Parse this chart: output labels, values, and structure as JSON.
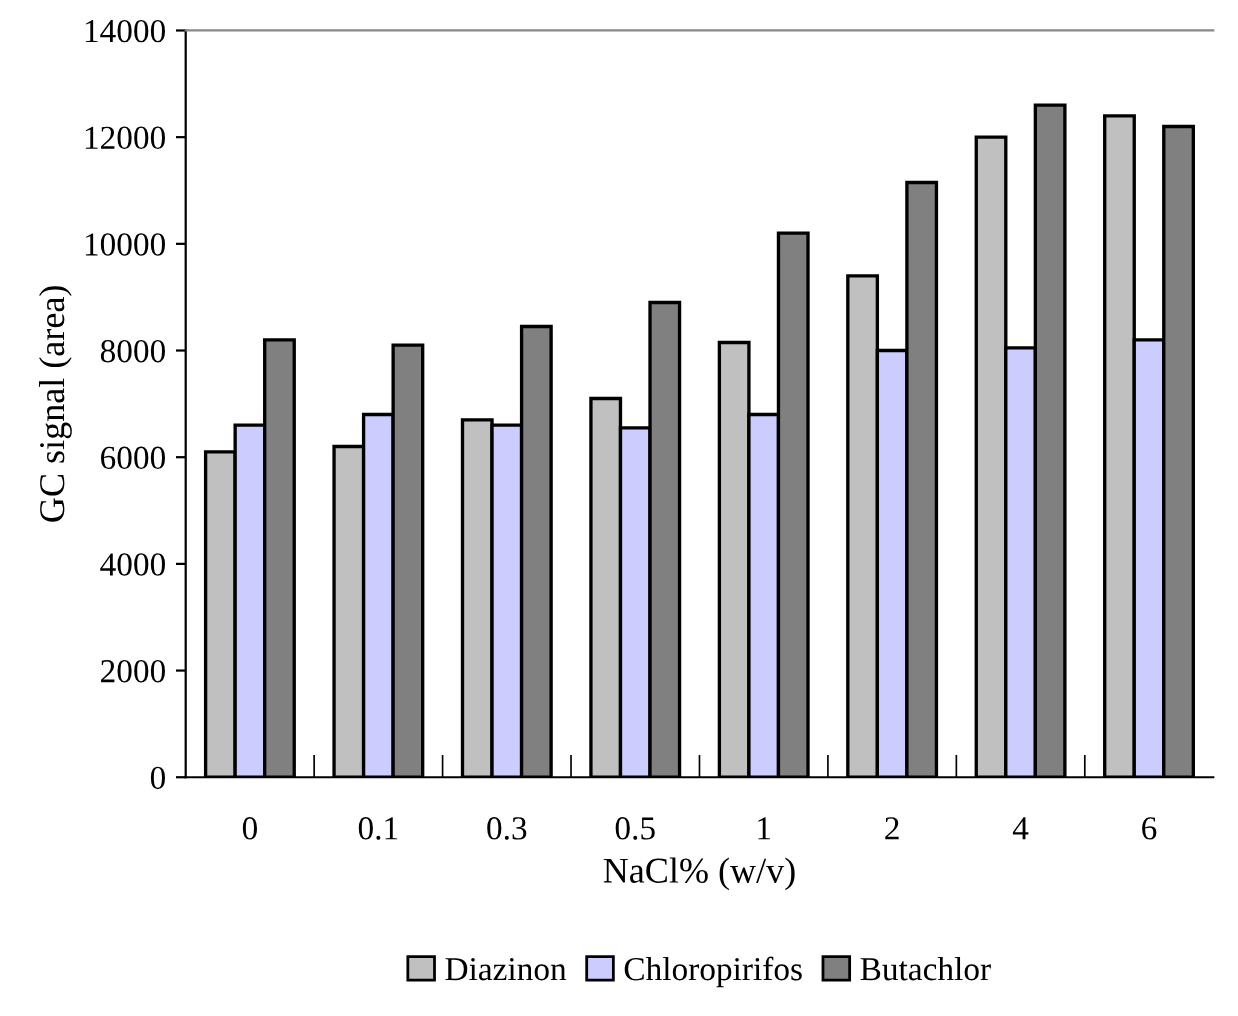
{
  "chart_data": {
    "type": "bar",
    "xlabel": "NaCl% (w/v)",
    "ylabel": "GC signal (area)",
    "categories": [
      "0",
      "0.1",
      "0.3",
      "0.5",
      "1",
      "2",
      "4",
      "6"
    ],
    "series": [
      {
        "name": "Diazinon",
        "color": "#c0c0c0",
        "values": [
          6100,
          6200,
          6700,
          7100,
          8150,
          9400,
          12000,
          12400
        ]
      },
      {
        "name": "Chloropirifos",
        "color": "#ccccff",
        "values": [
          6600,
          6800,
          6600,
          6550,
          6800,
          8000,
          8050,
          8200
        ]
      },
      {
        "name": "Butachlor",
        "color": "#808080",
        "values": [
          8200,
          8100,
          8450,
          8900,
          10200,
          11150,
          12600,
          12200
        ]
      }
    ],
    "ylim": [
      0,
      14000
    ],
    "yticks": [
      0,
      2000,
      4000,
      6000,
      8000,
      10000,
      12000,
      14000
    ],
    "grid": false,
    "legend": "bottom"
  }
}
